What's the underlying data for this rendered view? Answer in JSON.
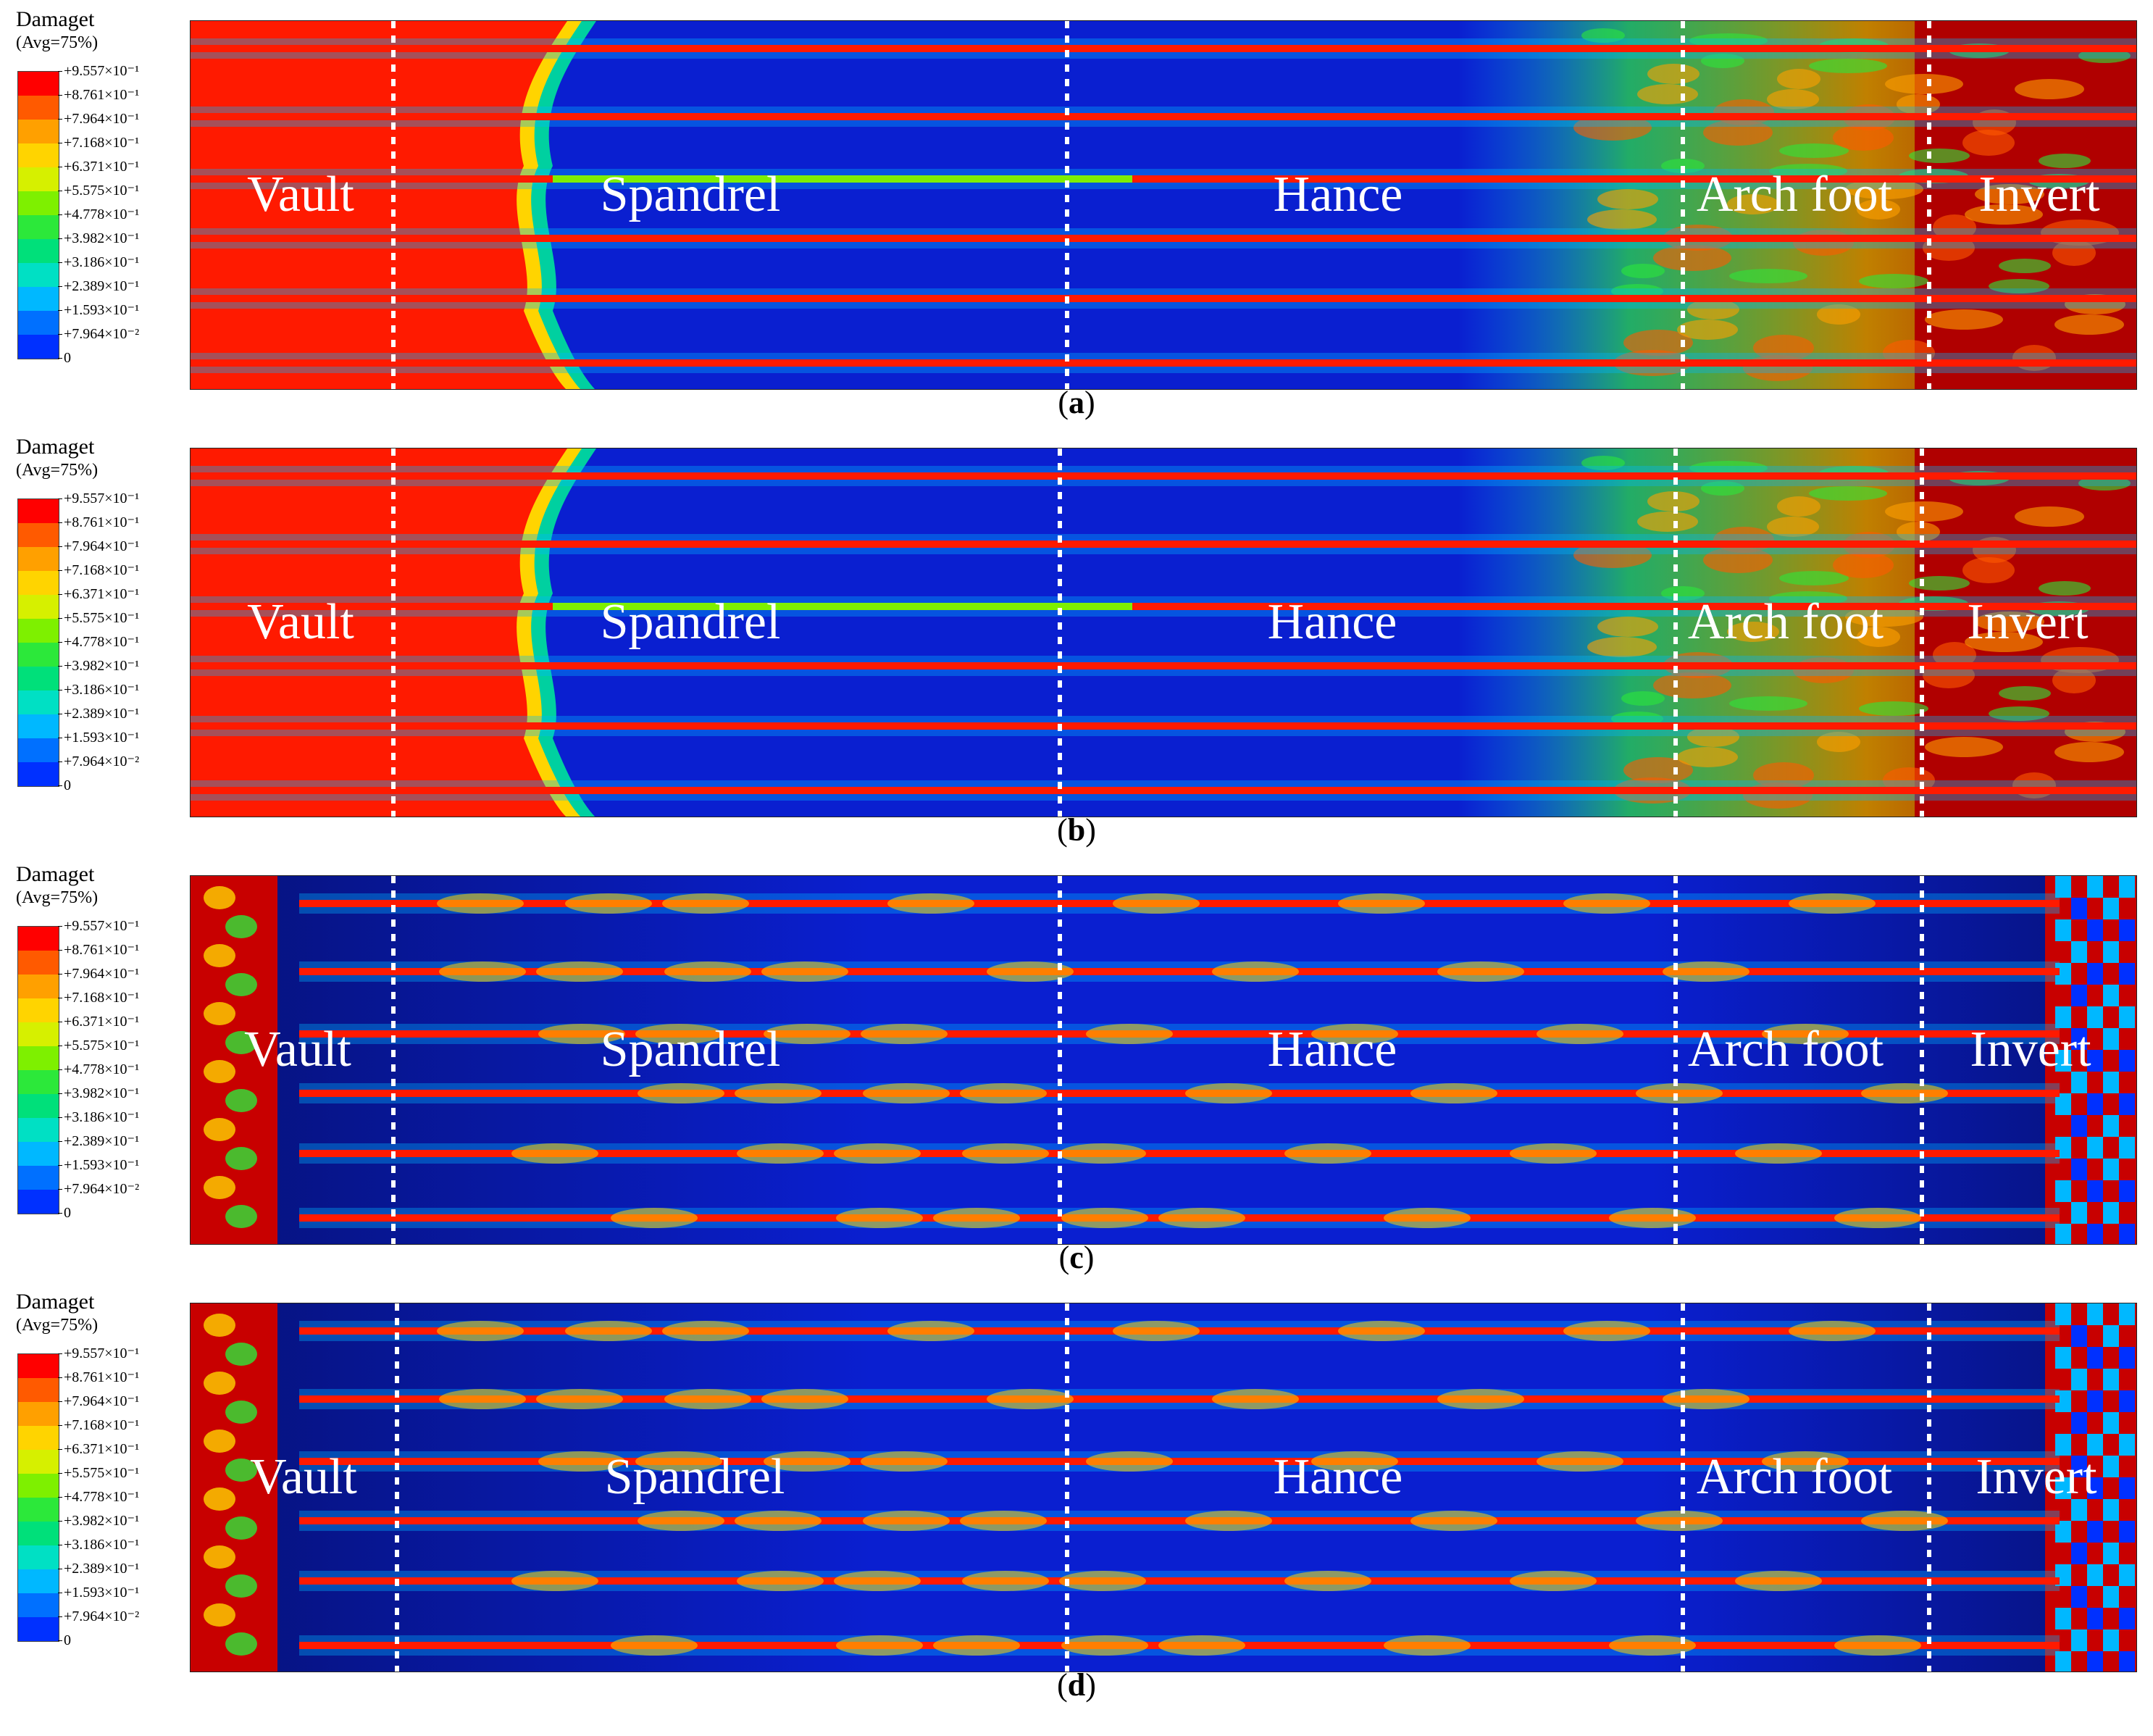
{
  "legend": {
    "title": "Damaget",
    "subtitle": "(Avg=75%)",
    "labels": [
      "+9.557×10⁻¹",
      "+8.761×10⁻¹",
      "+7.964×10⁻¹",
      "+7.168×10⁻¹",
      "+6.371×10⁻¹",
      "+5.575×10⁻¹",
      "+4.778×10⁻¹",
      "+3.982×10⁻¹",
      "+3.186×10⁻¹",
      "+2.389×10⁻¹",
      "+1.593×10⁻¹",
      "+7.964×10⁻²",
      "0"
    ],
    "colors": [
      "#ff0000",
      "#ff5a00",
      "#ffa000",
      "#ffd400",
      "#d6f000",
      "#7ef000",
      "#2ce83a",
      "#00e07a",
      "#00e0c4",
      "#00b8ff",
      "#0070ff",
      "#0030ff"
    ]
  },
  "zones": [
    "Vault",
    "Spandrel",
    "Hance",
    "Arch foot",
    "Invert"
  ],
  "panels": [
    {
      "caption_letter": "a",
      "severity": "heavy-vault-and-invert"
    },
    {
      "caption_letter": "b",
      "severity": "heavy-vault-and-invert"
    },
    {
      "caption_letter": "c",
      "severity": "light-with-end-bands"
    },
    {
      "caption_letter": "d",
      "severity": "light-with-end-bands"
    }
  ],
  "colors": {
    "background_blue": "#0a1fd0",
    "dark_blue": "#06127a",
    "reinforcement_red": "#ff1a00",
    "dark_red": "#c80000",
    "divider": "#ffffff"
  }
}
